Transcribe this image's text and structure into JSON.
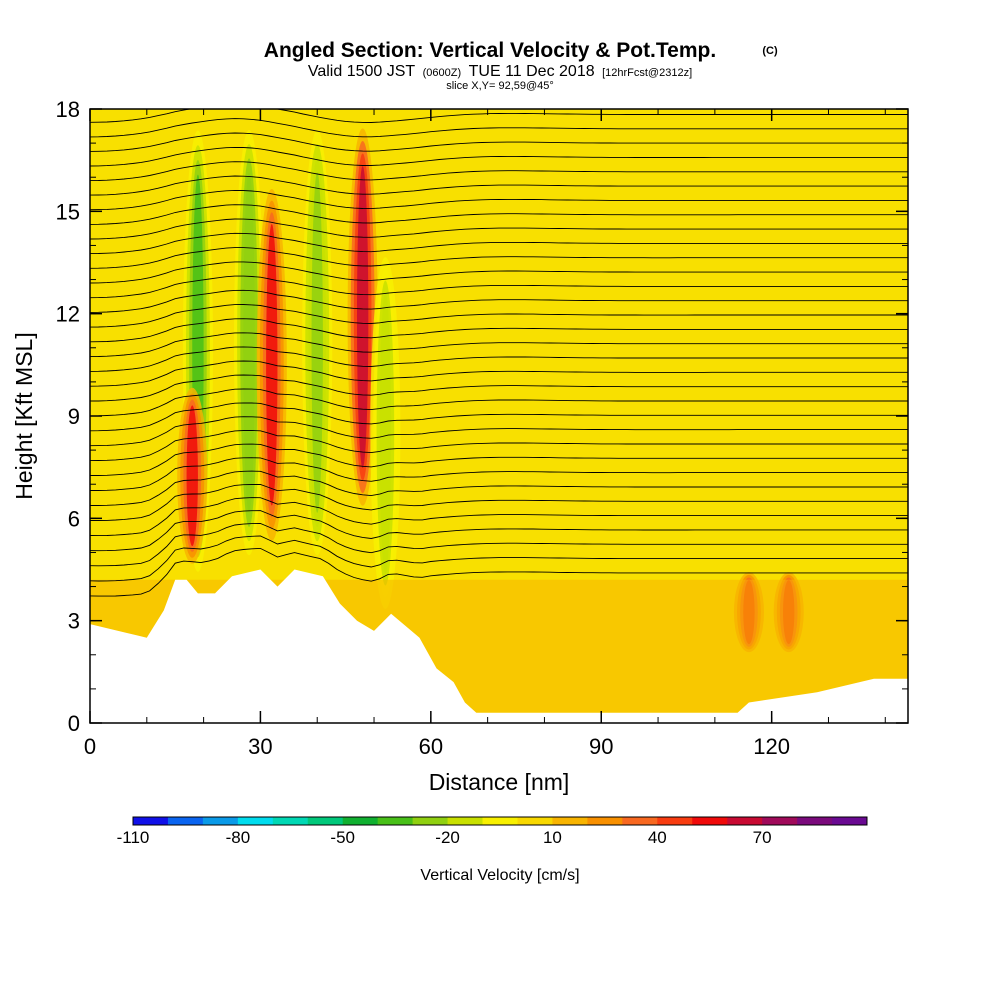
{
  "chart_data": {
    "type": "heatmap",
    "title": "Angled Section: Vertical Velocity & Pot.Temp.",
    "title_unit": "(C)",
    "subtitle": {
      "valid": "Valid 1500 JST",
      "utc": "(0600Z)",
      "date": "TUE 11 Dec 2018",
      "forecast": "[12hrFcst@2312z]"
    },
    "slice": "slice X,Y= 92,59@45°",
    "xlabel": "Distance [nm]",
    "ylabel": "Height [Kft MSL]",
    "xlim": [
      0,
      144
    ],
    "ylim": [
      0,
      18
    ],
    "x_ticks": [
      "0",
      "30",
      "60",
      "90",
      "120"
    ],
    "y_ticks": [
      "0",
      "3",
      "6",
      "9",
      "12",
      "15",
      "18"
    ],
    "colorbar": {
      "label": "Vertical Velocity [cm/s]",
      "tick_labels": [
        "-110",
        "-80",
        "-50",
        "-20",
        "10",
        "40",
        "70"
      ],
      "colors": [
        "#1010e8",
        "#0a64f0",
        "#0a9ae8",
        "#00dcee",
        "#00d8b4",
        "#00c87a",
        "#10b030",
        "#48c018",
        "#90d010",
        "#c8e000",
        "#f8f000",
        "#f8d800",
        "#f8b400",
        "#f89000",
        "#f86820",
        "#f83c10",
        "#f00a0a",
        "#c80a32",
        "#a00a5a",
        "#7a0a7c",
        "#6a0a92"
      ]
    },
    "terrain": [
      [
        0,
        2.9
      ],
      [
        10,
        2.5
      ],
      [
        13,
        3.3
      ],
      [
        15,
        4.2
      ],
      [
        17,
        4.2
      ],
      [
        19,
        3.8
      ],
      [
        22,
        3.8
      ],
      [
        25,
        4.3
      ],
      [
        30,
        4.5
      ],
      [
        33,
        4.0
      ],
      [
        36,
        4.5
      ],
      [
        41,
        4.3
      ],
      [
        44,
        3.5
      ],
      [
        47,
        3.0
      ],
      [
        50,
        2.7
      ],
      [
        53,
        3.2
      ],
      [
        58,
        2.5
      ],
      [
        61,
        1.6
      ],
      [
        64,
        1.2
      ],
      [
        66,
        0.6
      ],
      [
        68,
        0.3
      ],
      [
        95,
        0.3
      ],
      [
        114,
        0.3
      ],
      [
        116,
        0.6
      ],
      [
        128,
        0.9
      ],
      [
        138,
        1.3
      ],
      [
        144,
        1.3
      ]
    ],
    "velocity_features": [
      {
        "x": 19,
        "z": [
          4,
          17.8
        ],
        "value": -40
      },
      {
        "x": 28,
        "z": [
          4.5,
          17.8
        ],
        "value": -30
      },
      {
        "x": 32,
        "z": [
          5,
          16
        ],
        "value": 50
      },
      {
        "x": 40,
        "z": [
          4.5,
          17.8
        ],
        "value": -25
      },
      {
        "x": 48,
        "z": [
          6,
          17.8
        ],
        "value": 60
      },
      {
        "x": 52,
        "z": [
          3,
          14
        ],
        "value": -20
      },
      {
        "x": 18,
        "z": [
          4.5,
          10
        ],
        "value": 50
      },
      {
        "x": 116,
        "z": [
          2,
          4.5
        ],
        "value": 40
      },
      {
        "x": 123,
        "z": [
          2,
          4.5
        ],
        "value": 40
      }
    ],
    "theta_contours": [
      6,
      8,
      10,
      12,
      14,
      16,
      18,
      20,
      22,
      24,
      26,
      28,
      30,
      32,
      34,
      36,
      38,
      40
    ]
  }
}
